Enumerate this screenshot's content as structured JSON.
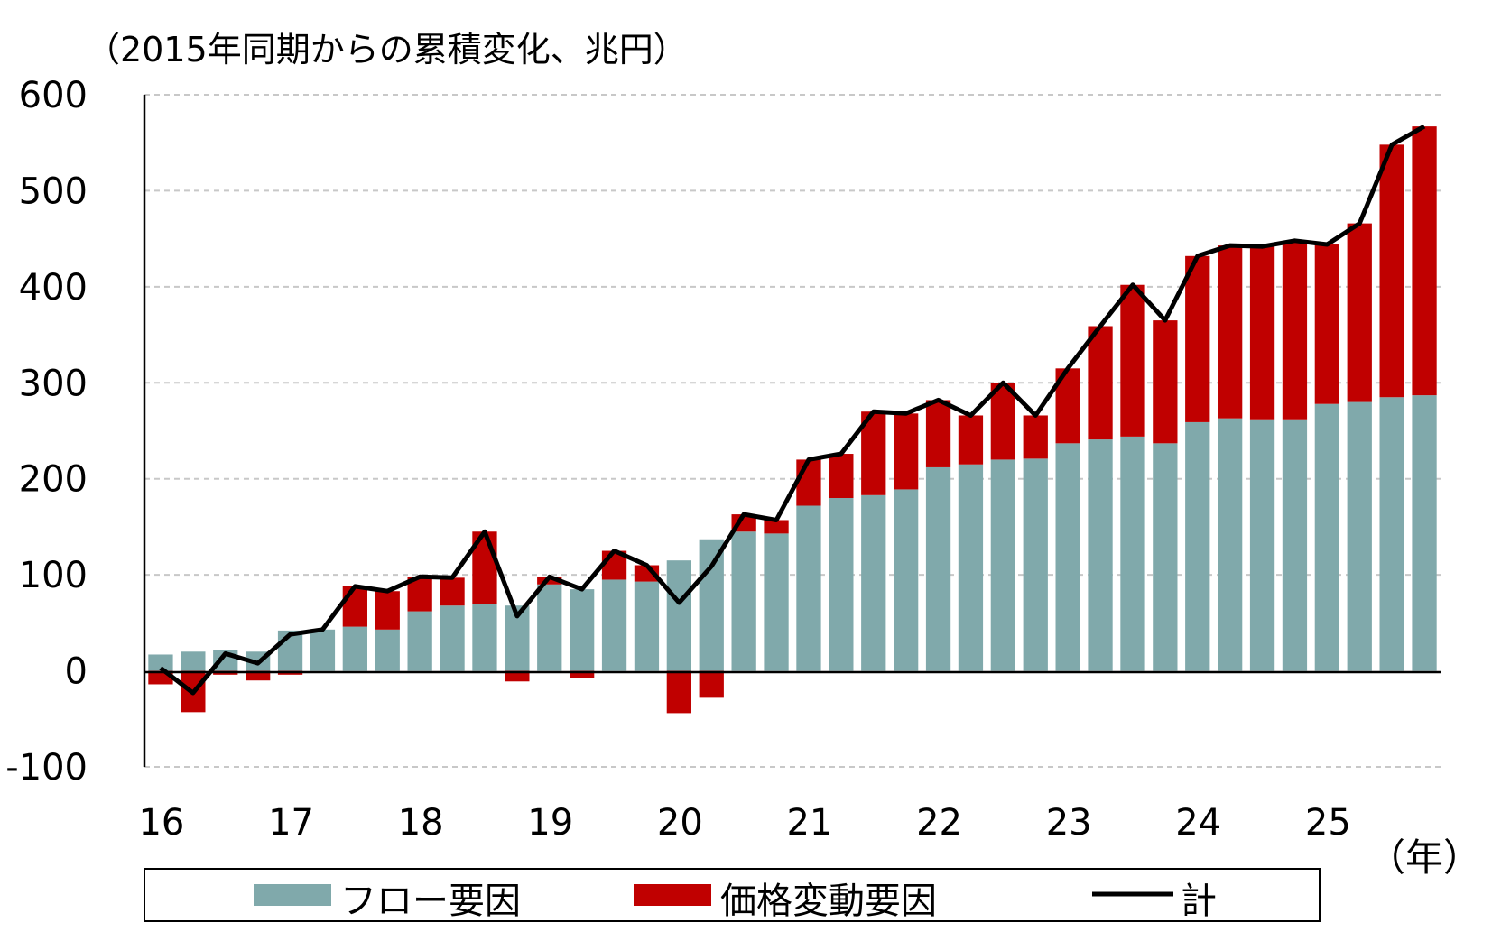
{
  "chart_data": {
    "type": "bar",
    "stacked": true,
    "title": "（2015年同期からの累積変化、兆円）",
    "xlabel": "（年）",
    "ylabel": "",
    "ylim": [
      -100,
      600
    ],
    "yticks": [
      "600",
      "500",
      "400",
      "300",
      "200",
      "100",
      "0",
      "-100"
    ],
    "ytick_values": [
      600,
      500,
      400,
      300,
      200,
      100,
      0,
      -100
    ],
    "xtick_labels": [
      "16",
      "17",
      "18",
      "19",
      "20",
      "21",
      "22",
      "23",
      "24",
      "25"
    ],
    "grid": true,
    "legend_placement": "bottom",
    "colors": {
      "flow": "#80a9ab",
      "price": "#c00000",
      "total": "#000000"
    },
    "categories": [
      "16Q1",
      "16Q2",
      "16Q3",
      "16Q4",
      "17Q1",
      "17Q2",
      "17Q3",
      "17Q4",
      "18Q1",
      "18Q2",
      "18Q3",
      "18Q4",
      "19Q1",
      "19Q2",
      "19Q3",
      "19Q4",
      "20Q1",
      "20Q2",
      "20Q3",
      "20Q4",
      "21Q1",
      "21Q2",
      "21Q3",
      "21Q4",
      "22Q1",
      "22Q2",
      "22Q3",
      "22Q4",
      "23Q1",
      "23Q2",
      "23Q3",
      "23Q4",
      "24Q1",
      "24Q2",
      "24Q3",
      "24Q4",
      "25Q1",
      "25Q2",
      "25Q3",
      "25Q4"
    ],
    "series": [
      {
        "name": "フロー要因",
        "kind": "bar",
        "values": [
          17,
          20,
          22,
          20,
          42,
          43,
          46,
          43,
          62,
          68,
          70,
          68,
          90,
          85,
          95,
          93,
          115,
          137,
          145,
          143,
          172,
          180,
          183,
          189,
          212,
          215,
          220,
          221,
          237,
          241,
          244,
          237,
          259,
          263,
          262,
          262,
          278,
          280,
          285,
          287
        ]
      },
      {
        "name": "価格変動要因",
        "kind": "bar",
        "values": [
          -14,
          -43,
          -4,
          -10,
          -4,
          0,
          42,
          40,
          36,
          29,
          75,
          -11,
          8,
          -7,
          30,
          17,
          -44,
          -28,
          18,
          14,
          48,
          46,
          87,
          79,
          70,
          51,
          80,
          45,
          78,
          118,
          158,
          128,
          173,
          180,
          180,
          186,
          166,
          186,
          263,
          280
        ]
      },
      {
        "name": "計",
        "kind": "line",
        "values": [
          3,
          -23,
          18,
          8,
          38,
          43,
          88,
          83,
          98,
          97,
          145,
          57,
          98,
          85,
          125,
          110,
          71,
          109,
          163,
          157,
          220,
          226,
          270,
          268,
          282,
          266,
          300,
          266,
          315,
          359,
          402,
          365,
          432,
          443,
          442,
          448,
          444,
          466,
          548,
          567
        ]
      }
    ]
  }
}
